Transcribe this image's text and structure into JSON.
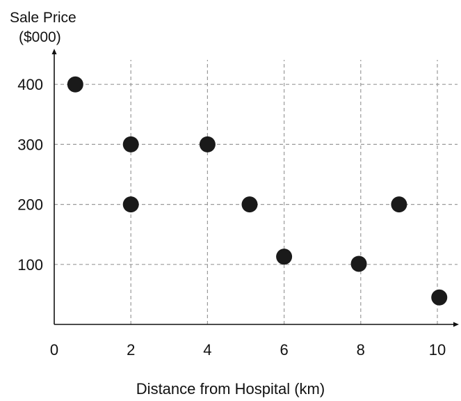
{
  "chart_data": {
    "type": "scatter",
    "ylabel_lines": [
      "Sale Price",
      "($000)"
    ],
    "xlabel": "Distance from Hospital (km)",
    "xlim": [
      0,
      10.6
    ],
    "ylim": [
      0,
      460
    ],
    "xticks": [
      0,
      2,
      4,
      6,
      8,
      10
    ],
    "yticks": [
      100,
      200,
      300,
      400
    ],
    "grid": true,
    "points": [
      {
        "x": 0.55,
        "y": 400
      },
      {
        "x": 2,
        "y": 300
      },
      {
        "x": 2,
        "y": 200
      },
      {
        "x": 4,
        "y": 300
      },
      {
        "x": 5.1,
        "y": 200
      },
      {
        "x": 6,
        "y": 113
      },
      {
        "x": 7.95,
        "y": 101
      },
      {
        "x": 9,
        "y": 200
      },
      {
        "x": 10.05,
        "y": 45
      }
    ],
    "colors": {
      "point": "#1a1a1a",
      "axis": "#111111",
      "grid": "#9a9a9a"
    }
  }
}
